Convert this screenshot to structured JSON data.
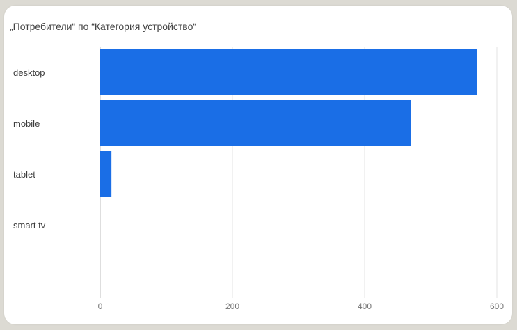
{
  "chart_data": {
    "type": "bar",
    "orientation": "horizontal",
    "title": "„Потребители“ по “Категория устройство“",
    "categories": [
      "desktop",
      "mobile",
      "tablet",
      "smart tv"
    ],
    "values": [
      570,
      470,
      17,
      0
    ],
    "xlim": [
      0,
      600
    ],
    "xticks": [
      0,
      200,
      400,
      600
    ],
    "xtick_labels": [
      "0",
      "200",
      "400",
      "600"
    ],
    "grid": true,
    "colors": {
      "bar": "#1a6ee6",
      "grid": "#e3e3e3",
      "axis": "#bdbdbd"
    }
  }
}
